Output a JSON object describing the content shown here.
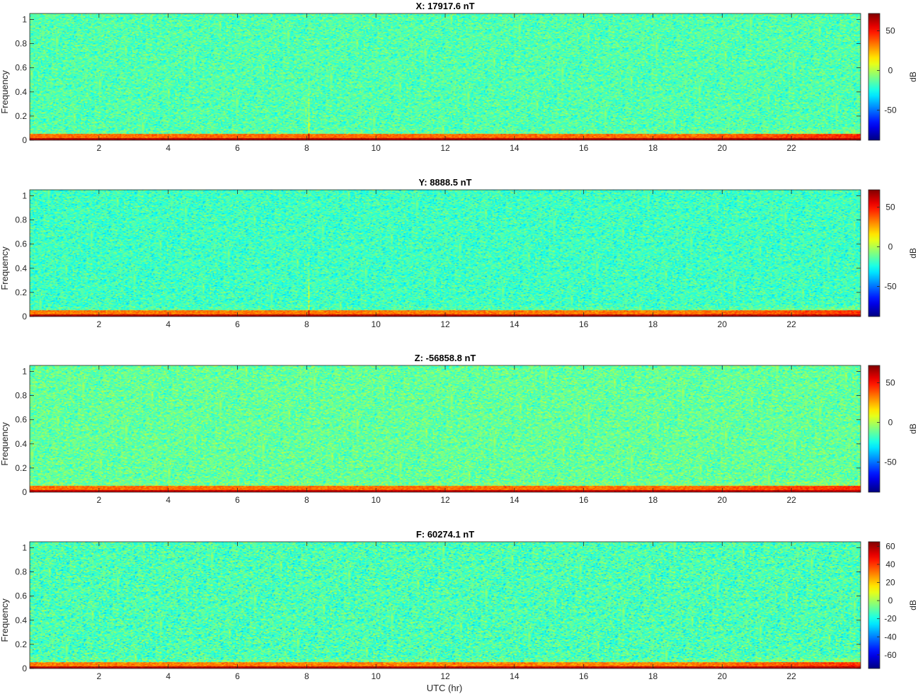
{
  "figure": {
    "xlabel": "UTC (hr)",
    "ylabel": "Frequency",
    "colorbar_label": "dB"
  },
  "chart_data": [
    {
      "type": "heatmap",
      "title": "X: 17917.6 nT",
      "xlabel": "",
      "ylabel": "Frequency",
      "xlim": [
        0,
        24
      ],
      "ylim": [
        0,
        1.05
      ],
      "x_ticks": [
        "2",
        "4",
        "6",
        "8",
        "10",
        "12",
        "14",
        "16",
        "18",
        "20",
        "22"
      ],
      "y_ticks": [
        "0",
        "0.2",
        "0.4",
        "0.6",
        "0.8",
        "1"
      ],
      "colormap": "jet",
      "clim": [
        -88,
        72
      ],
      "colorbar_ticks": [
        "50",
        "0",
        "-50"
      ],
      "colorbar_tick_values": [
        50,
        0,
        -50
      ],
      "colorbar_label": "dB",
      "background_level_db": -15,
      "low_frequency_band_db": 35,
      "lowest_bin_db": 65,
      "vertical_feature_hr": 8.05
    },
    {
      "type": "heatmap",
      "title": "Y: 8888.5 nT",
      "xlabel": "",
      "ylabel": "Frequency",
      "xlim": [
        0,
        24
      ],
      "ylim": [
        0,
        1.05
      ],
      "x_ticks": [
        "2",
        "4",
        "6",
        "8",
        "10",
        "12",
        "14",
        "16",
        "18",
        "20",
        "22"
      ],
      "y_ticks": [
        "0",
        "0.2",
        "0.4",
        "0.6",
        "0.8",
        "1"
      ],
      "colormap": "jet",
      "clim": [
        -88,
        72
      ],
      "colorbar_ticks": [
        "50",
        "0",
        "-50"
      ],
      "colorbar_tick_values": [
        50,
        0,
        -50
      ],
      "colorbar_label": "dB",
      "background_level_db": -18,
      "low_frequency_band_db": 33,
      "lowest_bin_db": 65,
      "vertical_feature_hr": 8.05
    },
    {
      "type": "heatmap",
      "title": "Z: -56858.8 nT",
      "xlabel": "",
      "ylabel": "Frequency",
      "xlim": [
        0,
        24
      ],
      "ylim": [
        0,
        1.05
      ],
      "x_ticks": [
        "2",
        "4",
        "6",
        "8",
        "10",
        "12",
        "14",
        "16",
        "18",
        "20",
        "22"
      ],
      "y_ticks": [
        "0",
        "0.2",
        "0.4",
        "0.6",
        "0.8",
        "1"
      ],
      "colormap": "jet",
      "clim": [
        -88,
        72
      ],
      "colorbar_ticks": [
        "50",
        "0",
        "-50"
      ],
      "colorbar_tick_values": [
        50,
        0,
        -50
      ],
      "colorbar_label": "dB",
      "background_level_db": -12,
      "low_frequency_band_db": 35,
      "lowest_bin_db": 62
    },
    {
      "type": "heatmap",
      "title": "F: 60274.1 nT",
      "xlabel": "UTC (hr)",
      "ylabel": "Frequency",
      "xlim": [
        0,
        24
      ],
      "ylim": [
        0,
        1.05
      ],
      "x_ticks": [
        "2",
        "4",
        "6",
        "8",
        "10",
        "12",
        "14",
        "16",
        "18",
        "20",
        "22"
      ],
      "y_ticks": [
        "0",
        "0.2",
        "0.4",
        "0.6",
        "0.8",
        "1"
      ],
      "colormap": "jet",
      "clim": [
        -75,
        65
      ],
      "colorbar_ticks": [
        "60",
        "40",
        "20",
        "0",
        "-20",
        "-40",
        "-60"
      ],
      "colorbar_tick_values": [
        60,
        40,
        20,
        0,
        -20,
        -40,
        -60
      ],
      "colorbar_label": "dB",
      "background_level_db": -12,
      "low_frequency_band_db": 30,
      "lowest_bin_db": 58
    }
  ]
}
